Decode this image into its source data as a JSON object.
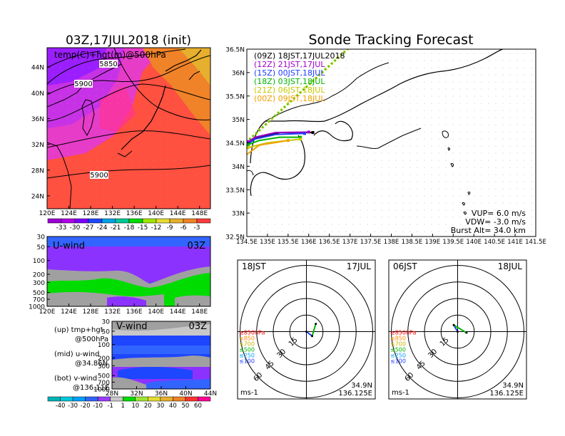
{
  "left_title": "03Z,17JUL2018 (init)",
  "right_title": "Sonde Tracking Forecast",
  "map500": {
    "label": "temp(C)+hgt(m)@500hPa",
    "contour_labels": [
      "5850",
      "5900",
      "5900"
    ],
    "lat_ticks": [
      "44N",
      "40N",
      "36N",
      "32N",
      "28N",
      "24N"
    ],
    "lon_ticks": [
      "120E",
      "124E",
      "128E",
      "132E",
      "136E",
      "140E",
      "144E",
      "148E"
    ],
    "colorbar_ticks": [
      "-33",
      "-30",
      "-27",
      "-24",
      "-21",
      "-18",
      "-15",
      "-12",
      "-9",
      "-6",
      "-3"
    ],
    "colorbar_colors": [
      "#9b00d6",
      "#b000e8",
      "#7a00ff",
      "#1e46ff",
      "#00a0e8",
      "#00c896",
      "#00dc00",
      "#a0e600",
      "#e6dc32",
      "#e6af2d",
      "#f08228",
      "#ff3c3c"
    ]
  },
  "uwind": {
    "label": "U-wind",
    "time": "03Z",
    "p_ticks": [
      "30",
      "50",
      "100",
      "200",
      "300",
      "500",
      "700",
      "1000"
    ],
    "lon_ticks": [
      "120E",
      "124E",
      "128E",
      "132E",
      "136E",
      "140E",
      "144E",
      "148E"
    ]
  },
  "vwind": {
    "label": "V-wind",
    "time": "03Z",
    "p_ticks": [
      "30",
      "50",
      "100",
      "200",
      "300",
      "500",
      "700",
      "1000"
    ],
    "lat_ticks": [
      "28N",
      "32N",
      "36N",
      "40N",
      "44N"
    ],
    "colorbar_ticks": [
      "-40",
      "-30",
      "-20",
      "-10",
      "-1",
      "1",
      "10",
      "20",
      "30",
      "40",
      "50",
      "60"
    ],
    "colorbar_colors": [
      "#00b4b4",
      "#00c8dc",
      "#00a0ff",
      "#3264ff",
      "#9b3cff",
      "#c8c8c8",
      "#00dc00",
      "#a0e632",
      "#e6dc32",
      "#e6af2d",
      "#f08228",
      "#ff3232",
      "#ff0096"
    ]
  },
  "legend_notes": {
    "up_1": "(up)  tmp+hgt",
    "up_2": "@500hPa",
    "mid_1": "(mid)  u-wind",
    "mid_2": "@34.86N",
    "bot_1": "(bot)  v-wind",
    "bot_2": "@136.11E"
  },
  "track_map": {
    "lat_ticks": [
      "36.5N",
      "36N",
      "35.5N",
      "35N",
      "34.5N",
      "34N",
      "33.5N",
      "33N",
      "32.5N"
    ],
    "lon_ticks": [
      "134.5E",
      "135E",
      "135.5E",
      "136E",
      "136.5E",
      "137E",
      "137.5E",
      "138E",
      "138.5E",
      "139E",
      "139.5E",
      "140E",
      "140.5E",
      "141E",
      "141.5E"
    ],
    "legend": [
      {
        "text": "(09Z)  18JST,17JUL2018",
        "color": "#000000"
      },
      {
        "text": "(12Z)  21JST,17JUL",
        "color": "#a000c8"
      },
      {
        "text": "(15Z)  00JST,18JUL",
        "color": "#1e3cff"
      },
      {
        "text": "(18Z)  03JST,18JUL",
        "color": "#00b400"
      },
      {
        "text": "(21Z)  06JST,18JUL",
        "color": "#c8c800"
      },
      {
        "text": "(00Z)  09JST,18JUL",
        "color": "#f0a000"
      }
    ],
    "vup": "VUP=  6.0  m/s",
    "vdw": "VDW=  -3.0  m/s",
    "burst": "Burst Alt=  34.0  km"
  },
  "hodo1": {
    "time": "18JST",
    "date": "17JUL",
    "unit": "ms-1",
    "loc_lat": "34.9N",
    "loc_lon": "136.125E",
    "ring_labels": [
      "15",
      "30",
      "45",
      "60"
    ],
    "levels": [
      {
        "text": "≥850hPa",
        "color": "#ff0000"
      },
      {
        "text": "≤850",
        "color": "#ff8c00"
      },
      {
        "text": "≤700",
        "color": "#c8b400"
      },
      {
        "text": "≤500",
        "color": "#00b400"
      },
      {
        "text": "≤250",
        "color": "#00a0ff"
      },
      {
        "text": "≤100",
        "color": "#1e3cff"
      }
    ]
  },
  "hodo2": {
    "time": "06JST",
    "date": "18JUL",
    "unit": "ms-1",
    "loc_lat": "34.9N",
    "loc_lon": "136.125E",
    "ring_labels": [
      "15",
      "30",
      "45",
      "60"
    ],
    "levels": [
      {
        "text": "≥850hPa",
        "color": "#ff0000"
      },
      {
        "text": "≤850",
        "color": "#ff8c00"
      },
      {
        "text": "≤700",
        "color": "#c8b400"
      },
      {
        "text": "≤500",
        "color": "#00b400"
      },
      {
        "text": "≤250",
        "color": "#00a0ff"
      },
      {
        "text": "≤100",
        "color": "#1e3cff"
      }
    ]
  },
  "chart_data": [
    {
      "type": "heatmap",
      "title": "03Z,17JUL2018 (init)",
      "subtitle": "temp(C)+hgt(m)@500hPa",
      "xlim": [
        120,
        150
      ],
      "ylim": [
        22,
        47
      ],
      "contours": [
        5850,
        5900
      ]
    },
    {
      "type": "heatmap",
      "title": "U-wind",
      "xlim": [
        120,
        150
      ],
      "y_scale": "log-pressure",
      "ylim": [
        1000,
        30
      ]
    },
    {
      "type": "heatmap",
      "title": "V-wind",
      "xlim": [
        28,
        44
      ],
      "y_scale": "log-pressure",
      "ylim": [
        1000,
        30
      ]
    },
    {
      "type": "line",
      "title": "Sonde Tracking Forecast",
      "xlim": [
        134.5,
        141.5
      ],
      "ylim": [
        32.5,
        36.5
      ],
      "series": [
        {
          "name": "(09Z)  18JST,17JUL2018",
          "points": [
            [
              134.53,
              34.5
            ],
            [
              134.7,
              34.6
            ],
            [
              135.3,
              34.72
            ],
            [
              136.1,
              34.72
            ]
          ]
        },
        {
          "name": "(12Z)  21JST,17JUL",
          "points": [
            [
              134.53,
              34.52
            ],
            [
              134.7,
              34.62
            ],
            [
              135.2,
              34.72
            ],
            [
              136.0,
              34.73
            ]
          ]
        },
        {
          "name": "(15Z)  00JST,18JUL",
          "points": [
            [
              134.53,
              34.48
            ],
            [
              134.7,
              34.58
            ],
            [
              135.2,
              34.68
            ],
            [
              135.9,
              34.7
            ]
          ]
        },
        {
          "name": "(18Z)  03JST,18JUL",
          "points": [
            [
              134.53,
              34.46
            ],
            [
              134.8,
              34.55
            ],
            [
              135.3,
              34.62
            ],
            [
              135.8,
              34.62
            ]
          ]
        },
        {
          "name": "(21Z)  06JST,18JUL",
          "points": [
            [
              134.53,
              34.4
            ],
            [
              135.0,
              34.5
            ],
            [
              135.8,
              34.58
            ]
          ]
        },
        {
          "name": "(00Z)  09JST,18JUL",
          "points": [
            [
              134.45,
              34.22
            ],
            [
              134.8,
              34.45
            ],
            [
              135.5,
              34.55
            ]
          ]
        }
      ]
    },
    {
      "type": "scatter",
      "title": "18JST 17JUL",
      "x": [
        0.0,
        5.2,
        8.5
      ],
      "y": [
        0.0,
        -4.0,
        7.0
      ]
    },
    {
      "type": "scatter",
      "title": "06JST 18JUL",
      "x": [
        0.0,
        -3.5,
        8.0
      ],
      "y": [
        0.0,
        6.0,
        -1.0
      ]
    }
  ]
}
